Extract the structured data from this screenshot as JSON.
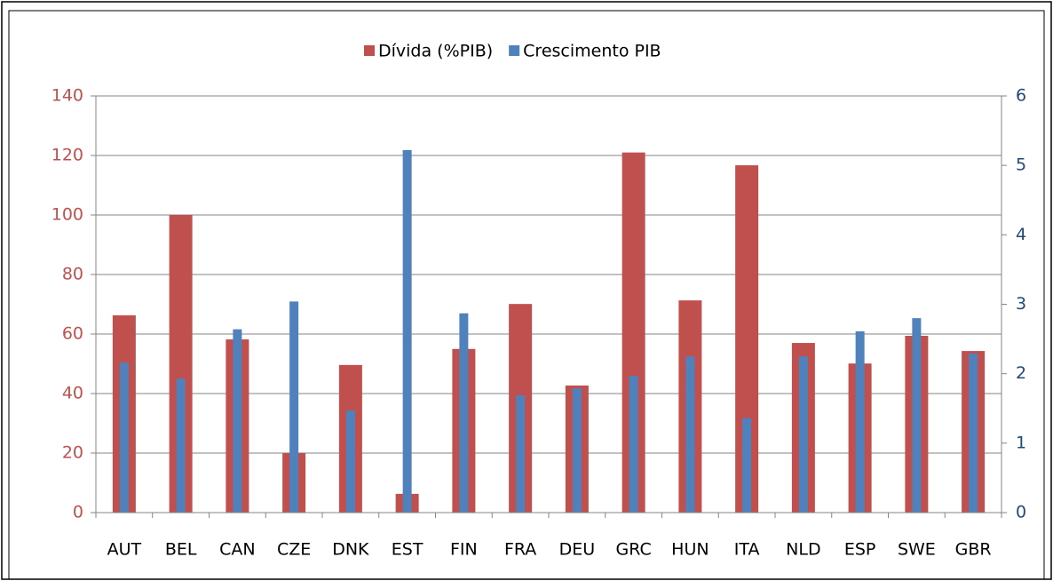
{
  "chart_data": {
    "type": "bar",
    "categories": [
      "AUT",
      "BEL",
      "CAN",
      "CZE",
      "DNK",
      "EST",
      "FIN",
      "FRA",
      "DEU",
      "GRC",
      "HUN",
      "ITA",
      "NLD",
      "ESP",
      "SWE",
      "GBR"
    ],
    "series": [
      {
        "name": "Dívida (%PIB)",
        "color": "#c0504d",
        "values": [
          66.3,
          100,
          58.2,
          20,
          49.6,
          6.3,
          55,
          70.1,
          42.7,
          121,
          71.3,
          116.7,
          57,
          50.1,
          59.4,
          54.3
        ]
      },
      {
        "name": "Crescimento PIB",
        "color": "#4f81bd",
        "axis": "y2",
        "values": [
          2.16,
          1.93,
          2.64,
          3.04,
          1.47,
          5.22,
          2.87,
          1.69,
          1.79,
          1.97,
          2.25,
          1.36,
          2.25,
          2.61,
          2.8,
          2.29
        ]
      }
    ],
    "ylim": [
      0,
      140
    ],
    "yticks": [
      0,
      20,
      40,
      60,
      80,
      100,
      120,
      140
    ],
    "y2lim": [
      0,
      6
    ],
    "y2ticks": [
      0,
      1,
      2,
      3,
      4,
      5,
      6
    ],
    "grid": true,
    "legend": "top"
  }
}
